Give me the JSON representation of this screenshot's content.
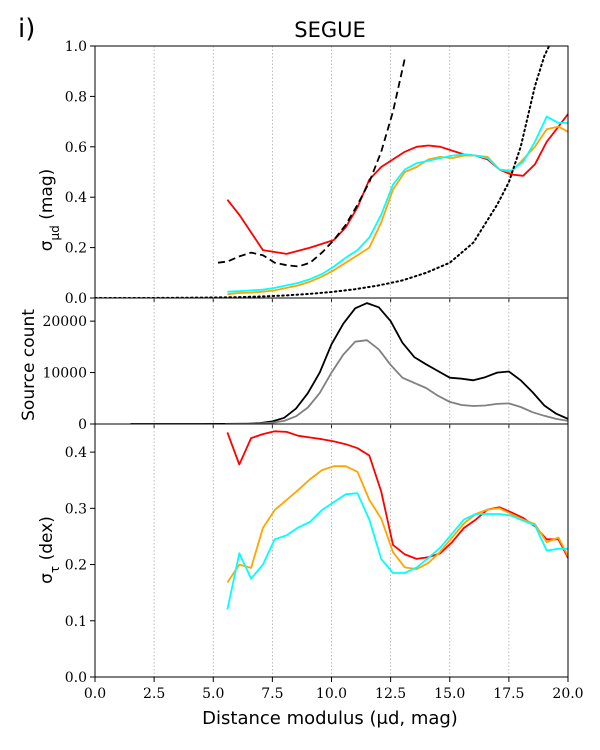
{
  "panel_label": "i)",
  "chart_data": {
    "type": "line",
    "title": "SEGUE",
    "xlabel": "Distance modulus (μd, mag)",
    "xlim": [
      0.0,
      20.0
    ],
    "x_ticks": [
      "0.0",
      "2.5",
      "5.0",
      "7.5",
      "10.0",
      "12.5",
      "15.0",
      "17.5",
      "20.0"
    ],
    "x_tick_values": [
      0,
      2.5,
      5,
      7.5,
      10,
      12.5,
      15,
      17.5,
      20
    ],
    "vertical_guides": [
      2.5,
      5,
      7.5,
      10,
      12.5,
      15,
      17.5
    ],
    "colors": {
      "red": "#ff0000",
      "orange": "#ffa500",
      "cyan": "#00ffff",
      "black": "#000000",
      "gray": "#808080",
      "guide": "#aaaaaa"
    },
    "panels": [
      {
        "id": "top",
        "ylabel_main": "σ",
        "ylabel_sub": "μd",
        "ylabel_suffix": " (mag)",
        "ylim": [
          0.0,
          1.0
        ],
        "y_ticks": [
          "0.0",
          "0.2",
          "0.4",
          "0.6",
          "0.8",
          "1.0"
        ],
        "y_tick_values": [
          0,
          0.2,
          0.4,
          0.6,
          0.8,
          1.0
        ],
        "series": [
          {
            "name": "red",
            "color": "red",
            "style": "solid",
            "x": [
              5.6,
              6.1,
              7.1,
              8.1,
              9.1,
              10.1,
              10.6,
              11.1,
              11.6,
              12.1,
              12.6,
              13.1,
              13.6,
              14.1,
              14.6,
              15.1,
              15.6,
              16.1,
              16.6,
              17.1,
              17.6,
              18.1,
              18.6,
              19.1,
              19.6,
              20.0
            ],
            "y": [
              0.39,
              0.33,
              0.19,
              0.175,
              0.2,
              0.23,
              0.28,
              0.36,
              0.47,
              0.52,
              0.55,
              0.58,
              0.6,
              0.605,
              0.6,
              0.585,
              0.57,
              0.565,
              0.55,
              0.51,
              0.49,
              0.485,
              0.53,
              0.62,
              0.68,
              0.73
            ]
          },
          {
            "name": "orange",
            "color": "orange",
            "style": "solid",
            "x": [
              5.6,
              6.1,
              6.6,
              7.1,
              7.6,
              8.1,
              8.6,
              9.1,
              9.6,
              10.1,
              10.6,
              11.1,
              11.6,
              12.1,
              12.6,
              13.1,
              13.6,
              14.1,
              14.6,
              15.1,
              15.6,
              16.1,
              16.6,
              17.1,
              17.6,
              18.1,
              18.6,
              19.1,
              19.6,
              20.0
            ],
            "y": [
              0.015,
              0.02,
              0.022,
              0.025,
              0.03,
              0.04,
              0.05,
              0.065,
              0.085,
              0.11,
              0.14,
              0.17,
              0.2,
              0.3,
              0.43,
              0.5,
              0.52,
              0.55,
              0.56,
              0.555,
              0.565,
              0.565,
              0.56,
              0.51,
              0.5,
              0.55,
              0.6,
              0.67,
              0.68,
              0.66
            ]
          },
          {
            "name": "cyan",
            "color": "cyan",
            "style": "solid",
            "x": [
              5.6,
              6.1,
              6.6,
              7.1,
              7.6,
              8.1,
              8.6,
              9.1,
              9.6,
              10.1,
              10.6,
              11.1,
              11.6,
              12.1,
              12.6,
              13.1,
              13.6,
              14.1,
              14.6,
              15.1,
              15.6,
              16.1,
              16.6,
              17.1,
              17.6,
              18.1,
              18.6,
              19.1,
              19.6,
              20.0
            ],
            "y": [
              0.025,
              0.027,
              0.03,
              0.033,
              0.04,
              0.05,
              0.06,
              0.075,
              0.095,
              0.125,
              0.16,
              0.19,
              0.24,
              0.33,
              0.45,
              0.51,
              0.535,
              0.545,
              0.555,
              0.565,
              0.57,
              0.565,
              0.555,
              0.51,
              0.505,
              0.54,
              0.62,
              0.72,
              0.695,
              0.695
            ]
          },
          {
            "name": "dashed-black",
            "color": "black",
            "style": "dashed",
            "x": [
              5.2,
              5.6,
              6.1,
              6.6,
              7.1,
              7.6,
              8.1,
              8.6,
              9.1,
              9.6,
              10.1,
              10.6,
              11.1,
              11.6,
              12.1,
              12.6,
              13.1
            ],
            "y": [
              0.14,
              0.145,
              0.165,
              0.18,
              0.17,
              0.14,
              0.13,
              0.125,
              0.14,
              0.18,
              0.23,
              0.29,
              0.37,
              0.46,
              0.58,
              0.74,
              0.95
            ]
          },
          {
            "name": "dotted-black",
            "color": "black",
            "style": "dotted",
            "x": [
              0,
              1,
              2,
              3,
              4,
              5,
              6,
              7,
              8,
              9,
              10,
              11,
              12,
              13,
              14,
              15,
              16,
              17,
              17.5,
              18,
              18.3,
              18.6,
              19.0,
              19.2
            ],
            "y": [
              0.0,
              0.0,
              0.0,
              0.0005,
              0.001,
              0.002,
              0.003,
              0.006,
              0.01,
              0.016,
              0.024,
              0.035,
              0.05,
              0.07,
              0.1,
              0.14,
              0.22,
              0.37,
              0.46,
              0.6,
              0.72,
              0.84,
              0.96,
              1.0
            ]
          }
        ]
      },
      {
        "id": "middle",
        "ylabel": "Source count",
        "ylim": [
          0,
          24500
        ],
        "y_ticks": [
          "0",
          "10000",
          "20000"
        ],
        "y_tick_values": [
          0,
          10000,
          20000
        ],
        "series": [
          {
            "name": "black",
            "color": "black",
            "style": "solid",
            "x": [
              1.5,
              2.5,
              3.5,
              4.5,
              5.5,
              6.5,
              7.0,
              7.5,
              8.0,
              8.5,
              9.0,
              9.5,
              10.0,
              10.5,
              11.0,
              11.5,
              12.0,
              12.5,
              13.0,
              13.5,
              14.0,
              14.5,
              15.0,
              15.5,
              16.0,
              16.5,
              17.0,
              17.5,
              18.0,
              18.5,
              19.0,
              19.5,
              20.0
            ],
            "y": [
              0,
              0,
              0,
              0,
              20,
              80,
              200,
              500,
              1200,
              3000,
              6000,
              10000,
              15500,
              19500,
              22500,
              23500,
              22700,
              20000,
              15800,
              13000,
              11600,
              10300,
              9000,
              8800,
              8500,
              9100,
              10000,
              10200,
              8500,
              6200,
              3600,
              2000,
              1000
            ]
          },
          {
            "name": "gray",
            "color": "gray",
            "style": "solid",
            "x": [
              5.5,
              6.0,
              6.5,
              7.0,
              7.5,
              8.0,
              8.5,
              9.0,
              9.5,
              10.0,
              10.5,
              11.0,
              11.5,
              12.0,
              12.5,
              13.0,
              13.5,
              14.0,
              14.5,
              15.0,
              15.5,
              16.0,
              16.5,
              17.0,
              17.5,
              18.0,
              18.5,
              19.0,
              19.5,
              20.0
            ],
            "y": [
              0,
              20,
              50,
              120,
              250,
              600,
              1500,
              3200,
              6000,
              10000,
              13500,
              16000,
              16300,
              14500,
              11500,
              9000,
              8000,
              7000,
              5500,
              4300,
              3700,
              3500,
              3600,
              3900,
              4000,
              3300,
              2300,
              1600,
              1000,
              600
            ]
          }
        ]
      },
      {
        "id": "bottom",
        "ylabel_main": "σ",
        "ylabel_sub": "τ",
        "ylabel_suffix": " (dex)",
        "ylim": [
          0.0,
          0.45
        ],
        "y_ticks": [
          "0.0",
          "0.1",
          "0.2",
          "0.3",
          "0.4"
        ],
        "y_tick_values": [
          0,
          0.1,
          0.2,
          0.3,
          0.4
        ],
        "series": [
          {
            "name": "red",
            "color": "red",
            "style": "solid",
            "x": [
              5.6,
              6.1,
              6.6,
              7.1,
              7.6,
              8.1,
              8.6,
              9.1,
              9.6,
              10.1,
              10.6,
              11.1,
              11.6,
              12.1,
              12.6,
              13.1,
              13.6,
              14.1,
              14.6,
              15.1,
              15.6,
              16.1,
              16.6,
              17.1,
              17.6,
              18.1,
              18.6,
              19.1,
              19.6,
              20.0
            ],
            "y": [
              0.435,
              0.378,
              0.425,
              0.432,
              0.437,
              0.436,
              0.429,
              0.426,
              0.423,
              0.419,
              0.414,
              0.407,
              0.394,
              0.33,
              0.235,
              0.218,
              0.21,
              0.213,
              0.22,
              0.24,
              0.265,
              0.28,
              0.298,
              0.302,
              0.293,
              0.283,
              0.268,
              0.245,
              0.245,
              0.212
            ]
          },
          {
            "name": "orange",
            "color": "orange",
            "style": "solid",
            "x": [
              5.6,
              6.1,
              6.6,
              7.1,
              7.6,
              8.1,
              8.6,
              9.1,
              9.6,
              10.1,
              10.6,
              11.1,
              11.6,
              12.1,
              12.6,
              13.1,
              13.6,
              14.1,
              14.6,
              15.1,
              15.6,
              16.1,
              16.6,
              17.1,
              17.6,
              18.1,
              18.6,
              19.1,
              19.6,
              20.0
            ],
            "y": [
              0.168,
              0.2,
              0.194,
              0.265,
              0.297,
              0.315,
              0.333,
              0.352,
              0.368,
              0.375,
              0.375,
              0.365,
              0.315,
              0.282,
              0.222,
              0.195,
              0.192,
              0.203,
              0.223,
              0.248,
              0.273,
              0.29,
              0.298,
              0.3,
              0.29,
              0.28,
              0.272,
              0.24,
              0.248,
              0.215
            ]
          },
          {
            "name": "cyan",
            "color": "cyan",
            "style": "solid",
            "x": [
              5.6,
              6.1,
              6.6,
              7.1,
              7.6,
              8.1,
              8.6,
              9.1,
              9.6,
              10.1,
              10.6,
              11.1,
              11.6,
              12.1,
              12.6,
              13.1,
              13.6,
              14.1,
              14.6,
              15.1,
              15.6,
              16.1,
              16.6,
              17.1,
              17.6,
              18.1,
              18.6,
              19.1,
              19.6,
              20.0
            ],
            "y": [
              0.12,
              0.22,
              0.175,
              0.2,
              0.245,
              0.252,
              0.266,
              0.276,
              0.297,
              0.311,
              0.325,
              0.327,
              0.28,
              0.21,
              0.185,
              0.185,
              0.195,
              0.212,
              0.23,
              0.255,
              0.28,
              0.29,
              0.29,
              0.29,
              0.287,
              0.278,
              0.27,
              0.225,
              0.228,
              0.228
            ]
          }
        ]
      }
    ]
  }
}
